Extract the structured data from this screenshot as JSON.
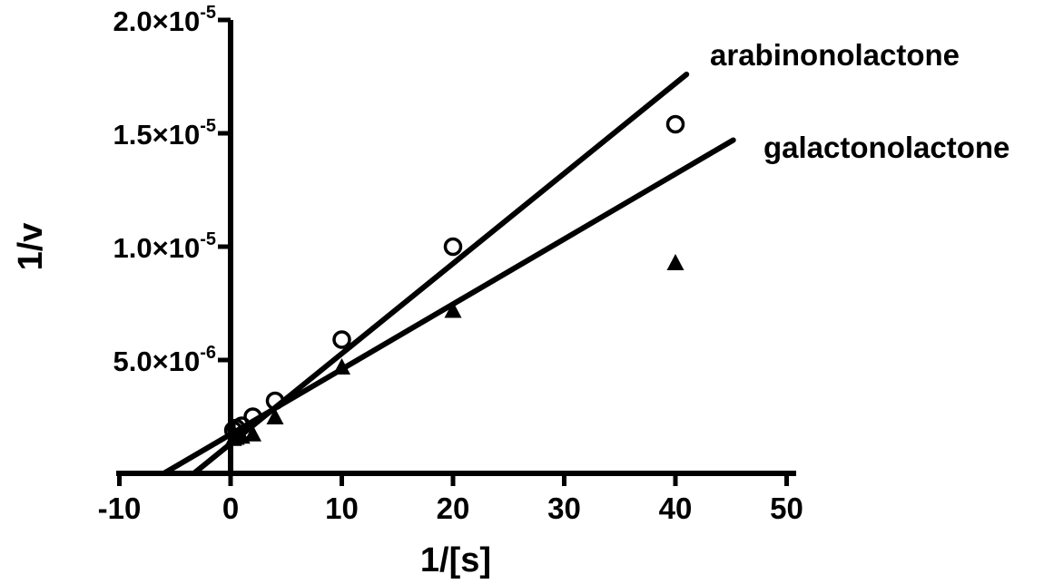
{
  "chart_data": {
    "type": "scatter",
    "title": "",
    "xlabel": "1/[s]",
    "ylabel": "1/v",
    "xlim": [
      -10,
      50
    ],
    "ylim": [
      0,
      2e-05
    ],
    "grid": false,
    "legend": "none",
    "x_ticks": [
      {
        "value": -10,
        "label": "-10"
      },
      {
        "value": 0,
        "label": "0"
      },
      {
        "value": 10,
        "label": "10"
      },
      {
        "value": 20,
        "label": "20"
      },
      {
        "value": 30,
        "label": "30"
      },
      {
        "value": 40,
        "label": "40"
      },
      {
        "value": 50,
        "label": "50"
      }
    ],
    "y_ticks": [
      {
        "value": 5e-06,
        "mantissa": "5.0×10",
        "exponent": "-6"
      },
      {
        "value": 1e-05,
        "mantissa": "1.0×10",
        "exponent": "-5"
      },
      {
        "value": 1.5e-05,
        "mantissa": "1.5×10",
        "exponent": "-5"
      },
      {
        "value": 2e-05,
        "mantissa": "2.0×10",
        "exponent": "-5"
      }
    ],
    "series": [
      {
        "name": "arabinonolactone",
        "marker": "open-circle",
        "points": [
          {
            "x": 0.25,
            "y": 1.9e-06
          },
          {
            "x": 0.5,
            "y": 2e-06
          },
          {
            "x": 1,
            "y": 2.1e-06
          },
          {
            "x": 2,
            "y": 2.5e-06
          },
          {
            "x": 4,
            "y": 3.2e-06
          },
          {
            "x": 10,
            "y": 5.9e-06
          },
          {
            "x": 20,
            "y": 1e-05
          },
          {
            "x": 40,
            "y": 1.54e-05
          }
        ],
        "fit_line": {
          "x": [
            -3.3,
            41
          ],
          "y": [
            0,
            1.76e-05
          ]
        }
      },
      {
        "name": "galactonolactone",
        "marker": "filled-triangle",
        "points": [
          {
            "x": 0.25,
            "y": 1.55e-06
          },
          {
            "x": 0.5,
            "y": 1.6e-06
          },
          {
            "x": 1,
            "y": 1.65e-06
          },
          {
            "x": 2,
            "y": 1.75e-06
          },
          {
            "x": 4,
            "y": 2.5e-06
          },
          {
            "x": 10,
            "y": 4.7e-06
          },
          {
            "x": 20,
            "y": 7.2e-06
          },
          {
            "x": 40,
            "y": 9.3e-06
          }
        ],
        "fit_line": {
          "x": [
            -6,
            45.2
          ],
          "y": [
            0,
            1.47e-05
          ]
        }
      }
    ],
    "colors": {
      "ink": "#000000",
      "background": "#ffffff"
    }
  }
}
